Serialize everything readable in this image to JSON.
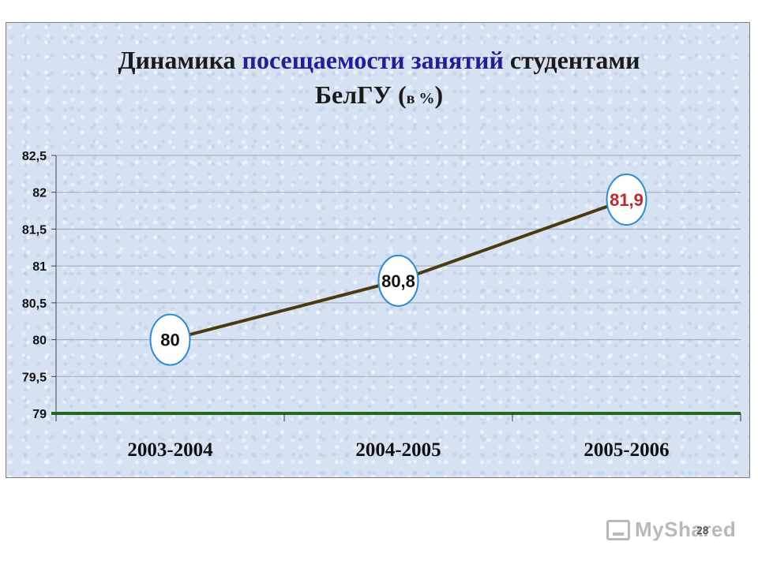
{
  "chart_data": {
    "type": "line",
    "title_parts": [
      {
        "text": "Динамика ",
        "color": "#1a1a1a"
      },
      {
        "text": "посещаемости занятий",
        "color": "#1f1f9c"
      },
      {
        "text": " студентами",
        "color": "#1a1a1a"
      }
    ],
    "title_line2_main": "БелГУ (",
    "title_line2_small": "в %",
    "title_line2_end": ")",
    "categories": [
      "2003-2004",
      "2004-2005",
      "2005-2006"
    ],
    "values": [
      80,
      80.8,
      81.9
    ],
    "data_labels": [
      "80",
      "80,8",
      "81,9"
    ],
    "label_colors": [
      "#111111",
      "#111111",
      "#c0262d"
    ],
    "ylim": [
      79,
      82.5
    ],
    "yticks": [
      79,
      79.5,
      80,
      80.5,
      81,
      81.5,
      82,
      82.5
    ],
    "ytick_labels": [
      "79",
      "79,5",
      "80",
      "80,5",
      "81",
      "81,5",
      "82",
      "82,5"
    ],
    "grid": true,
    "line_color": "#4a3a10",
    "axis_color": "#1f6a1f"
  },
  "page_number": "28",
  "watermark": "MyShared"
}
